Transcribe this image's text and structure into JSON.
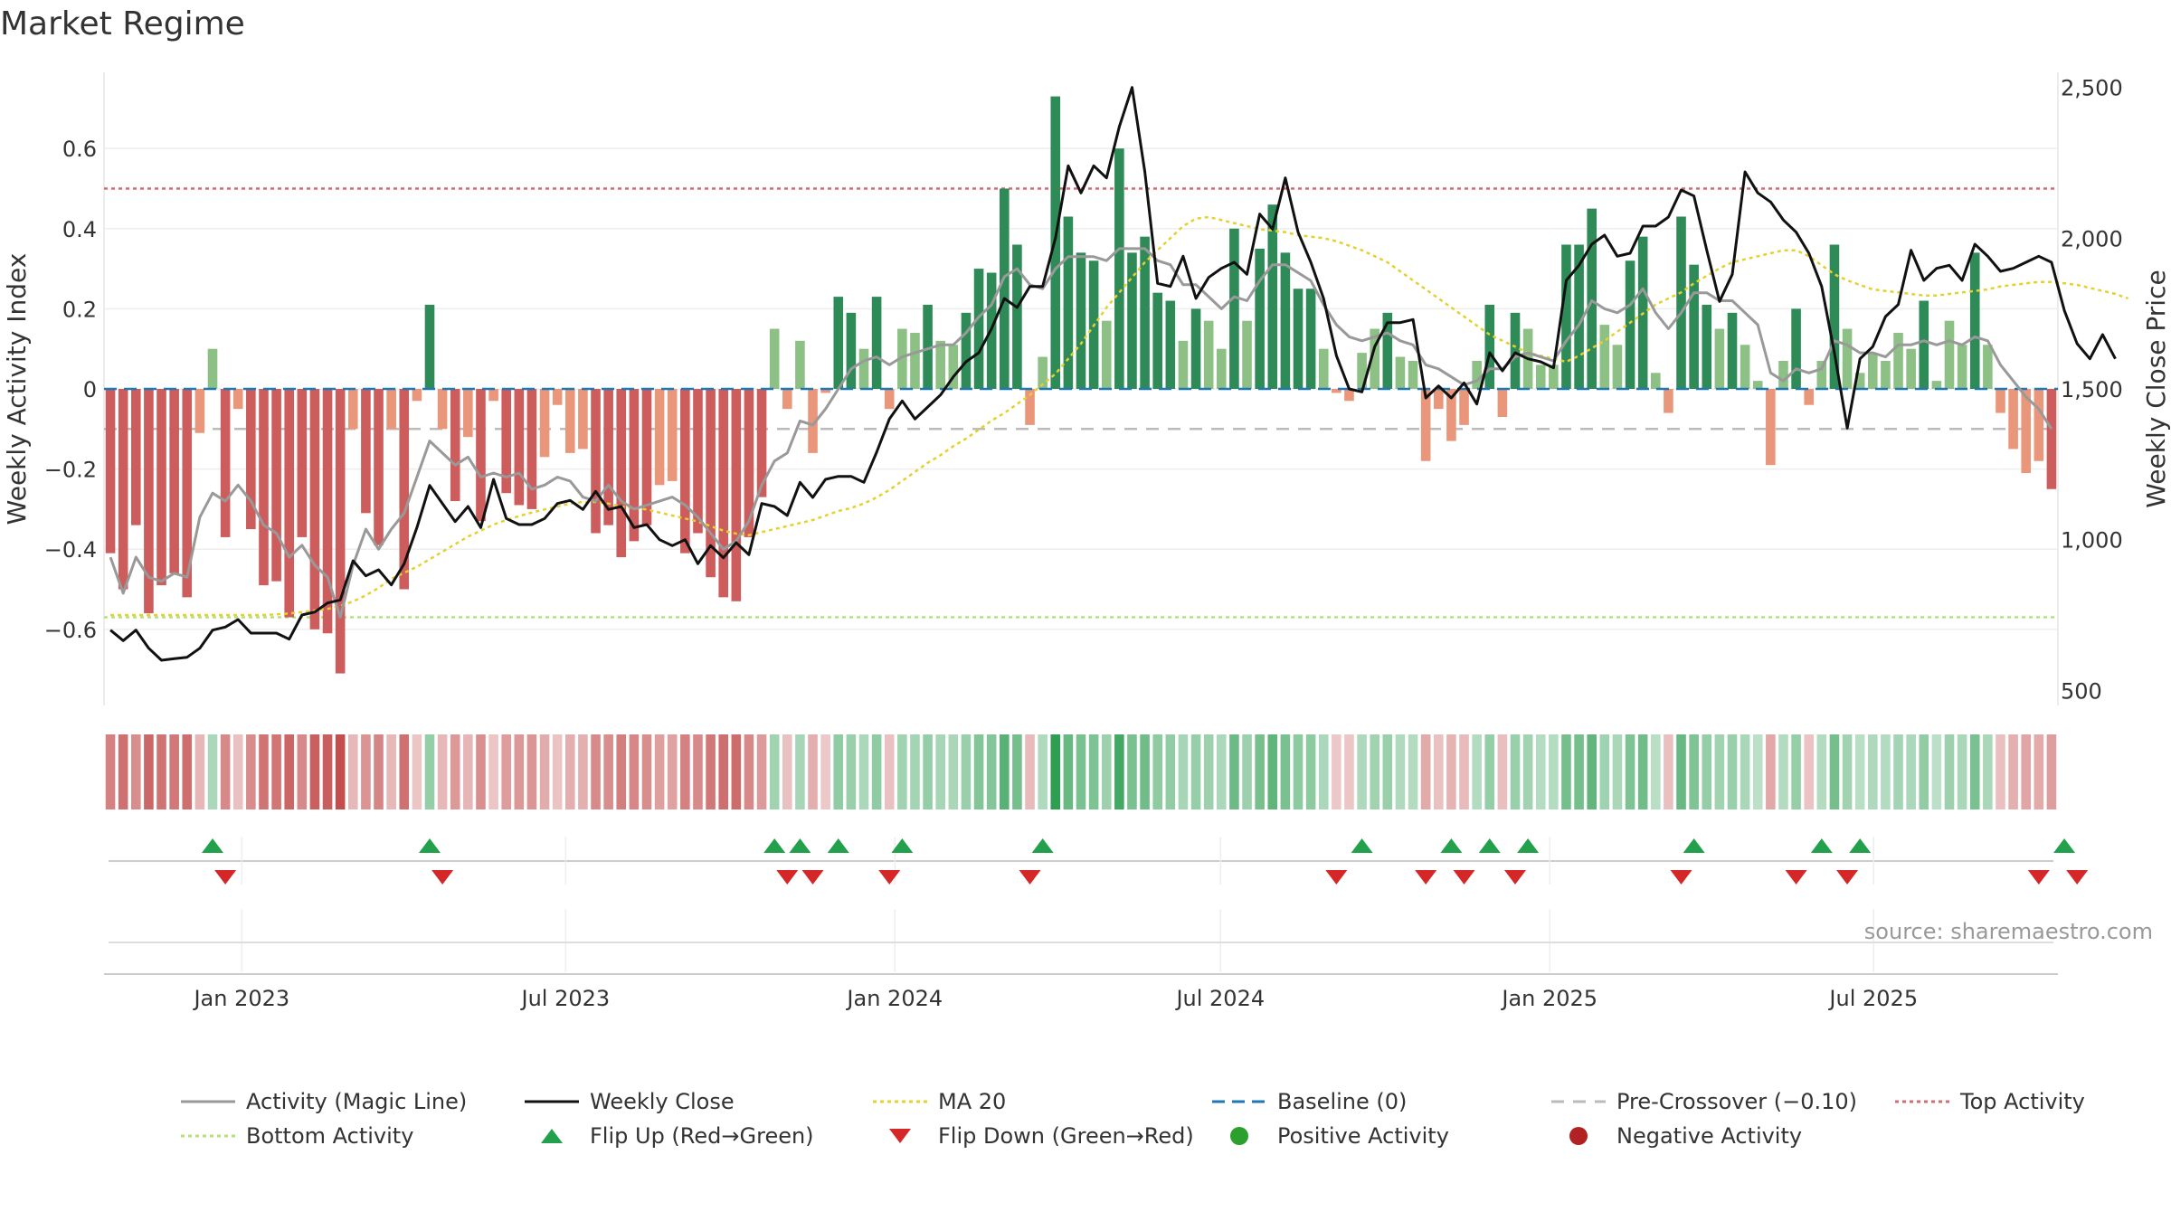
{
  "chart_data": {
    "type": "bar",
    "title": "Market Regime",
    "ylabel": "Weekly Activity Index",
    "y2label": "Weekly Close Price",
    "ylim": [
      -0.79,
      0.79
    ],
    "y2lim": [
      450,
      2550
    ],
    "y_ticks": [
      -0.6,
      -0.4,
      -0.2,
      0,
      0.2,
      0.4,
      0.6
    ],
    "y_tick_labels": [
      "−0.6",
      "−0.4",
      "−0.2",
      "0",
      "0.2",
      "0.4",
      "0.6"
    ],
    "y2_ticks": [
      500,
      1000,
      1500,
      2000,
      2500
    ],
    "y2_tick_labels": [
      "500",
      "1,000",
      "1,500",
      "2,000",
      "2,500"
    ],
    "x_range": [
      "2022-10-16",
      "2025-10-12"
    ],
    "x_ticks": [
      "2023-01-01",
      "2023-07-01",
      "2024-01-01",
      "2024-07-01",
      "2025-01-01",
      "2025-07-01"
    ],
    "x_tick_labels": [
      "Jan 2023",
      "Jul 2023",
      "Jan 2024",
      "Jul 2024",
      "Jan 2025",
      "Jul 2025"
    ],
    "top_activity": 0.5,
    "bottom_activity": -0.57,
    "pre_crossover": -0.1,
    "baseline": 0,
    "colors": {
      "pos_strong": "#2e8b57",
      "pos_weak": "#8cc084",
      "neg_strong": "#cd5c5c",
      "neg_weak": "#e9967a",
      "magic_line": "#999999",
      "close_line": "#111111",
      "ma_line": "#e6d030",
      "baseline": "#1f77b4",
      "pre_crossover": "#bbbbbb",
      "top_activity": "#d66a70",
      "bottom_activity": "#b5e07a",
      "flip_up": "#22a04b",
      "flip_down": "#d62728",
      "positive_dot": "#2ca02c",
      "negative_dot": "#b22222"
    },
    "activity": [
      -0.41,
      -0.5,
      -0.34,
      -0.56,
      -0.49,
      -0.46,
      -0.52,
      -0.11,
      0.1,
      -0.37,
      -0.05,
      -0.35,
      -0.49,
      -0.48,
      -0.57,
      -0.37,
      -0.6,
      -0.61,
      -0.71,
      -0.1,
      -0.31,
      -0.39,
      -0.1,
      -0.5,
      -0.03,
      0.21,
      -0.1,
      -0.28,
      -0.12,
      -0.33,
      -0.03,
      -0.26,
      -0.29,
      -0.3,
      -0.17,
      -0.04,
      -0.16,
      -0.15,
      -0.36,
      -0.34,
      -0.42,
      -0.38,
      -0.34,
      -0.24,
      -0.23,
      -0.41,
      -0.36,
      -0.47,
      -0.52,
      -0.53,
      -0.37,
      -0.27,
      0.15,
      -0.05,
      0.12,
      -0.16,
      -0.01,
      0.23,
      0.19,
      0.1,
      0.23,
      -0.05,
      0.15,
      0.14,
      0.21,
      0.12,
      0.11,
      0.19,
      0.3,
      0.29,
      0.5,
      0.36,
      -0.09,
      0.08,
      0.73,
      0.43,
      0.34,
      0.32,
      0.17,
      0.6,
      0.34,
      0.38,
      0.24,
      0.22,
      0.12,
      0.2,
      0.17,
      0.1,
      0.4,
      0.17,
      0.35,
      0.46,
      0.34,
      0.25,
      0.25,
      0.1,
      -0.01,
      -0.03,
      0.09,
      0.15,
      0.19,
      0.08,
      0.07,
      -0.18,
      -0.05,
      -0.13,
      -0.09,
      0.07,
      0.21,
      -0.07,
      0.19,
      0.15,
      0.06,
      0.06,
      0.36,
      0.36,
      0.45,
      0.16,
      0.11,
      0.32,
      0.38,
      0.04,
      -0.06,
      0.43,
      0.31,
      0.21,
      0.15,
      0.19,
      0.11,
      0.02,
      -0.19,
      0.07,
      0.2,
      -0.04,
      0.07,
      0.36,
      0.15,
      0.04,
      0.09,
      0.07,
      0.14,
      0.1,
      0.22,
      0.02,
      0.17,
      0.11,
      0.34,
      0.11,
      -0.06,
      -0.15,
      -0.21,
      -0.18,
      -0.25
    ],
    "magic_line": [
      -0.42,
      -0.51,
      -0.42,
      -0.47,
      -0.48,
      -0.46,
      -0.47,
      -0.32,
      -0.26,
      -0.28,
      -0.24,
      -0.28,
      -0.34,
      -0.36,
      -0.42,
      -0.39,
      -0.44,
      -0.47,
      -0.57,
      -0.44,
      -0.35,
      -0.4,
      -0.35,
      -0.31,
      -0.22,
      -0.13,
      -0.16,
      -0.19,
      -0.17,
      -0.22,
      -0.21,
      -0.22,
      -0.21,
      -0.25,
      -0.24,
      -0.22,
      -0.23,
      -0.27,
      -0.28,
      -0.24,
      -0.28,
      -0.3,
      -0.29,
      -0.28,
      -0.27,
      -0.29,
      -0.32,
      -0.36,
      -0.4,
      -0.38,
      -0.33,
      -0.24,
      -0.18,
      -0.16,
      -0.08,
      -0.09,
      -0.05,
      0,
      0.05,
      0.07,
      0.08,
      0.06,
      0.08,
      0.09,
      0.1,
      0.11,
      0.11,
      0.14,
      0.18,
      0.21,
      0.28,
      0.3,
      0.26,
      0.25,
      0.3,
      0.33,
      0.33,
      0.33,
      0.32,
      0.35,
      0.35,
      0.35,
      0.32,
      0.31,
      0.26,
      0.26,
      0.23,
      0.2,
      0.23,
      0.22,
      0.27,
      0.31,
      0.31,
      0.29,
      0.27,
      0.21,
      0.16,
      0.13,
      0.12,
      0.13,
      0.14,
      0.12,
      0.11,
      0.06,
      0.05,
      0.03,
      0.01,
      0.02,
      0.05,
      0.05,
      0.08,
      0.09,
      0.08,
      0.07,
      0.12,
      0.16,
      0.22,
      0.2,
      0.19,
      0.21,
      0.25,
      0.19,
      0.15,
      0.19,
      0.24,
      0.24,
      0.22,
      0.22,
      0.19,
      0.16,
      0.04,
      0.02,
      0.05,
      0.04,
      0.05,
      0.12,
      0.11,
      0.09,
      0.09,
      0.08,
      0.11,
      0.11,
      0.12,
      0.11,
      0.12,
      0.11,
      0.13,
      0.12,
      0.06,
      0.02,
      -0.02,
      -0.05,
      -0.1
    ],
    "close": [
      700,
      665,
      700,
      640,
      600,
      605,
      610,
      640,
      700,
      710,
      735,
      690,
      690,
      690,
      670,
      750,
      760,
      790,
      800,
      930,
      880,
      900,
      850,
      920,
      1040,
      1180,
      1120,
      1060,
      1110,
      1040,
      1200,
      1070,
      1050,
      1050,
      1070,
      1120,
      1130,
      1100,
      1160,
      1100,
      1110,
      1040,
      1050,
      1000,
      980,
      1000,
      920,
      980,
      940,
      990,
      950,
      1120,
      1110,
      1080,
      1190,
      1140,
      1200,
      1210,
      1210,
      1190,
      1290,
      1400,
      1460,
      1400,
      1440,
      1480,
      1540,
      1590,
      1620,
      1700,
      1800,
      1770,
      1840,
      1840,
      2000,
      2240,
      2150,
      2240,
      2200,
      2370,
      2500,
      2220,
      1850,
      1840,
      1940,
      1800,
      1870,
      1900,
      1920,
      1880,
      2080,
      2030,
      2200,
      2020,
      1920,
      1800,
      1610,
      1500,
      1490,
      1640,
      1720,
      1720,
      1730,
      1470,
      1510,
      1470,
      1520,
      1450,
      1620,
      1560,
      1620,
      1600,
      1590,
      1570,
      1860,
      1910,
      1980,
      2010,
      1940,
      1950,
      2040,
      2040,
      2070,
      2160,
      2140,
      1960,
      1790,
      1880,
      2220,
      2150,
      2120,
      2060,
      2020,
      1950,
      1840,
      1620,
      1370,
      1600,
      1640,
      1740,
      1780,
      1960,
      1860,
      1900,
      1910,
      1860,
      1980,
      1940,
      1890,
      1900,
      1920,
      1940,
      1920,
      1760,
      1650,
      1600,
      1680,
      1600
    ],
    "ma20": [
      750,
      750,
      750,
      750,
      750,
      750,
      750,
      750,
      750,
      750,
      750,
      750,
      750,
      752,
      755,
      760,
      765,
      770,
      780,
      795,
      815,
      840,
      870,
      890,
      910,
      935,
      960,
      985,
      1010,
      1030,
      1050,
      1065,
      1078,
      1090,
      1100,
      1110,
      1120,
      1125,
      1125,
      1120,
      1110,
      1105,
      1100,
      1090,
      1080,
      1070,
      1060,
      1045,
      1030,
      1020,
      1015,
      1025,
      1035,
      1045,
      1055,
      1065,
      1080,
      1095,
      1105,
      1120,
      1140,
      1165,
      1195,
      1225,
      1255,
      1280,
      1310,
      1335,
      1365,
      1395,
      1420,
      1450,
      1480,
      1515,
      1550,
      1600,
      1650,
      1710,
      1770,
      1820,
      1870,
      1920,
      1960,
      2000,
      2040,
      2065,
      2070,
      2060,
      2050,
      2040,
      2030,
      2025,
      2020,
      2010,
      2005,
      2000,
      1990,
      1975,
      1960,
      1940,
      1920,
      1890,
      1860,
      1830,
      1800,
      1770,
      1740,
      1710,
      1680,
      1660,
      1640,
      1620,
      1610,
      1600,
      1590,
      1610,
      1635,
      1660,
      1690,
      1720,
      1750,
      1780,
      1800,
      1820,
      1850,
      1875,
      1900,
      1920,
      1930,
      1940,
      1950,
      1960,
      1960,
      1940,
      1910,
      1880,
      1860,
      1845,
      1830,
      1825,
      1820,
      1815,
      1810,
      1810,
      1815,
      1820,
      1825,
      1830,
      1840,
      1845,
      1850,
      1855,
      1855,
      1850,
      1845,
      1835,
      1825,
      1815,
      1800
    ]
  },
  "flip_up_weeks": [
    8,
    25,
    52,
    54,
    57,
    62,
    73,
    98,
    105,
    108,
    111,
    124,
    134,
    137,
    153
  ],
  "flip_down_weeks": [
    9,
    26,
    53,
    55,
    61,
    72,
    96,
    103,
    106,
    110,
    123,
    132,
    136,
    151,
    154
  ],
  "y_tick_min_label": "−0.6",
  "source": "source: sharemaestro.com",
  "legend": [
    {
      "label": "Activity (Magic Line)",
      "kind": "line",
      "color": "#999999",
      "dash": ""
    },
    {
      "label": "Weekly Close",
      "kind": "line",
      "color": "#111111",
      "dash": ""
    },
    {
      "label": "MA 20",
      "kind": "line",
      "color": "#e6d030",
      "dash": "4,4"
    },
    {
      "label": "Baseline (0)",
      "kind": "line",
      "color": "#1f77b4",
      "dash": "14,8"
    },
    {
      "label": "Pre-Crossover (−0.10)",
      "kind": "line",
      "color": "#bbbbbb",
      "dash": "14,10"
    },
    {
      "label": "Top Activity",
      "kind": "line",
      "color": "#d66a70",
      "dash": "4,4"
    },
    {
      "label": "Bottom Activity",
      "kind": "line",
      "color": "#b5e07a",
      "dash": "4,4"
    },
    {
      "label": "Flip Up (Red→Green)",
      "kind": "tri-up",
      "color": "#22a04b"
    },
    {
      "label": "Flip Down (Green→Red)",
      "kind": "tri-down",
      "color": "#d62728"
    },
    {
      "label": "Positive Activity",
      "kind": "dot",
      "color": "#2ca02c"
    },
    {
      "label": "Negative Activity",
      "kind": "dot",
      "color": "#b22222"
    }
  ]
}
